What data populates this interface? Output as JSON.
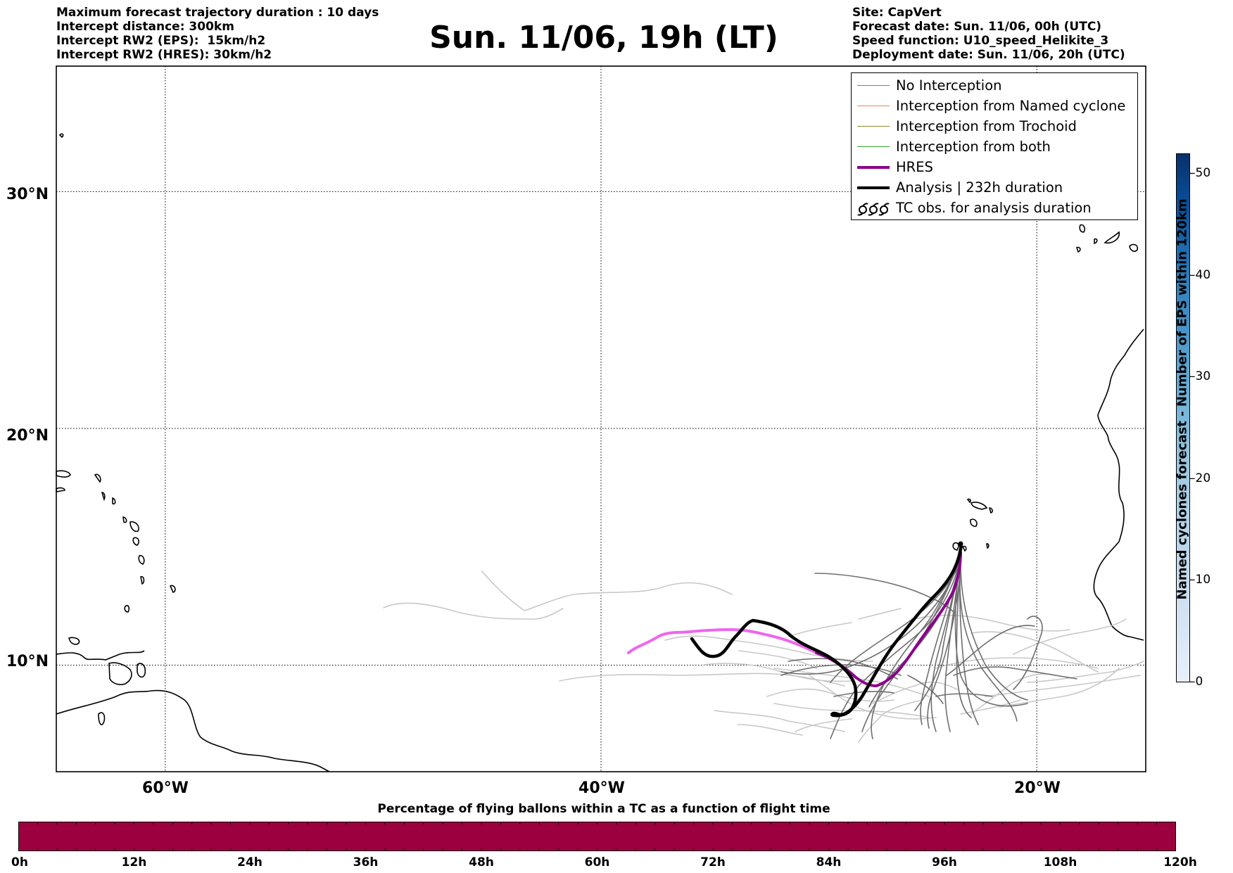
{
  "header_left": [
    "Maximum forecast trajectory duration : 10 days",
    "Intercept distance: 300km",
    "Intercept RW2 (EPS):  15km/h2",
    "Intercept RW2 (HRES): 30km/h2"
  ],
  "title": "Sun. 11/06, 19h (LT)",
  "header_right": [
    "Site: CapVert",
    "Forecast date: Sun. 11/06, 00h (UTC)",
    "Speed function: U10_speed_Helikite_3",
    "Deployment date: Sun. 11/06, 20h (UTC)"
  ],
  "map": {
    "lat_labels": [
      "30°N",
      "20°N",
      "10°N"
    ],
    "lon_labels": [
      "60°W",
      "40°W",
      "20°W"
    ],
    "lat_values": [
      30,
      20,
      10
    ],
    "lon_values": [
      -60,
      -40,
      -20
    ],
    "lon_range": [
      -65,
      -15
    ],
    "lat_range": [
      5.5,
      35.3
    ]
  },
  "legend": [
    {
      "label": "No Interception",
      "color": "#808080",
      "width": 1.5,
      "icon": "line"
    },
    {
      "label": "Interception from Named cyclone",
      "color": "#ff7f50",
      "width": 1.5,
      "icon": "line"
    },
    {
      "label": "Interception from Trochoid",
      "color": "#8b8b2b",
      "width": 1.5,
      "icon": "line"
    },
    {
      "label": "Interception from both",
      "color": "#2ca02c",
      "width": 1.5,
      "icon": "line"
    },
    {
      "label": "HRES",
      "color": "#8b008b",
      "width": 4,
      "icon": "line"
    },
    {
      "label": "Analysis | 232h duration",
      "color": "#000000",
      "width": 4,
      "icon": "line"
    },
    {
      "label": "TC obs. for analysis duration",
      "color": "#000000",
      "width": 2,
      "icon": "tc-symbol"
    }
  ],
  "colorbar_vertical": {
    "title": "Named cyclones forecast - Number of EPS within 120km",
    "ticks": [
      "50",
      "40",
      "30",
      "20",
      "10",
      "0"
    ],
    "tick_values": [
      50,
      40,
      30,
      20,
      10,
      0
    ],
    "range": [
      0,
      52
    ],
    "color_low": "#e8f0fa",
    "color_high": "#08306b"
  },
  "colorbar_horizontal": {
    "title": "Percentage of flying ballons within a TC as a function of flight time",
    "ticks": [
      "0h",
      "12h",
      "24h",
      "36h",
      "48h",
      "60h",
      "72h",
      "84h",
      "96h",
      "108h",
      "120h"
    ],
    "fill_color": "#9c003f"
  }
}
